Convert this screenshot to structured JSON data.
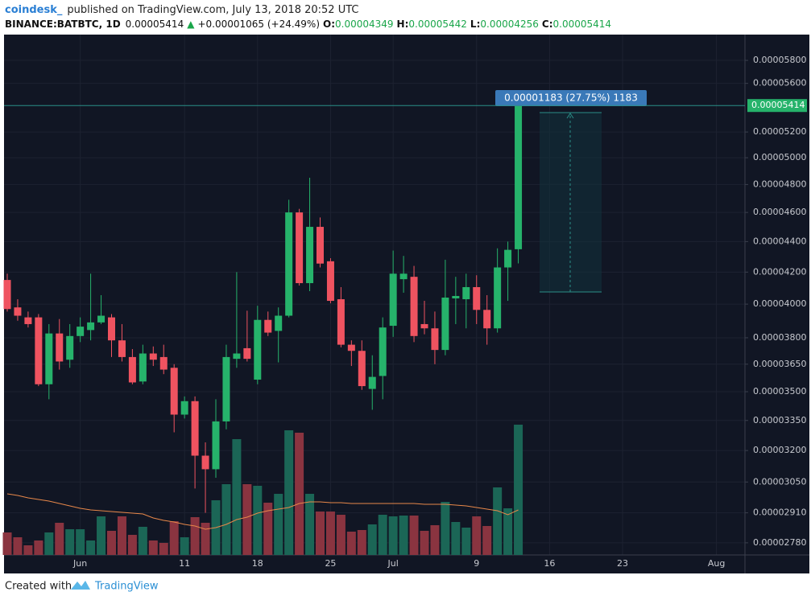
{
  "chart_data": {
    "type": "candlestick",
    "publisher": "coindesk_",
    "subtitle": "published on TradingView.com, July 13, 2018 20:52 UTC",
    "symbol": "BINANCE:BATBTC, 1D",
    "change_arrow": "▲",
    "change": "+0.00001065 (+24.49%)",
    "ohlc_labels": [
      "O:",
      "H:",
      "L:",
      "C:"
    ],
    "measure_label": "0.00001183 (27.75%) 1183",
    "footer": "Created with",
    "footer_brand": "TradingView",
    "log_scale": true,
    "grid": true,
    "up_color": "#26b36b",
    "down_color": "#ef5360",
    "volume_up_color": "#1b6656",
    "volume_down_color": "#8a3440",
    "ma_color": "#e8884a",
    "ylim": [
      2.729e-05,
      6.025e-05
    ],
    "yticks": [
      {
        "value": 5.8e-05,
        "label": "0.00005800"
      },
      {
        "value": 5.6e-05,
        "label": "0.00005600"
      },
      {
        "value": 5.2e-05,
        "label": "0.00005200"
      },
      {
        "value": 5e-05,
        "label": "0.00005000"
      },
      {
        "value": 4.8e-05,
        "label": "0.00004800"
      },
      {
        "value": 4.6e-05,
        "label": "0.00004600"
      },
      {
        "value": 4.4e-05,
        "label": "0.00004400"
      },
      {
        "value": 4.2e-05,
        "label": "0.00004200"
      },
      {
        "value": 4e-05,
        "label": "0.00004000"
      },
      {
        "value": 3.8e-05,
        "label": "0.00003800"
      },
      {
        "value": 3.65e-05,
        "label": "0.00003650"
      },
      {
        "value": 3.5e-05,
        "label": "0.00003500"
      },
      {
        "value": 3.35e-05,
        "label": "0.00003350"
      },
      {
        "value": 3.2e-05,
        "label": "0.00003200"
      },
      {
        "value": 3.05e-05,
        "label": "0.00003050"
      },
      {
        "value": 2.91e-05,
        "label": "0.00002910"
      },
      {
        "value": 2.78e-05,
        "label": "0.00002780"
      }
    ],
    "categories": [
      null,
      null,
      null,
      null,
      null,
      null,
      null,
      "Jun",
      null,
      null,
      null,
      null,
      null,
      null,
      null,
      null,
      null,
      "11",
      null,
      null,
      null,
      null,
      null,
      null,
      "18",
      null,
      null,
      null,
      null,
      null,
      null,
      "25",
      null,
      null,
      null,
      null,
      null,
      "Jul",
      null,
      null,
      null,
      null,
      null,
      null,
      null,
      "9",
      null,
      null,
      null,
      null,
      null,
      null,
      "16",
      null,
      null,
      null,
      null,
      null,
      null,
      "23",
      null,
      null,
      null,
      null,
      null,
      null,
      null,
      null,
      "Aug",
      null,
      null
    ],
    "open": [
      4.15e-05,
      3.98e-05,
      3.92e-05,
      3.92e-05,
      3.54e-05,
      3.825e-05,
      3.675e-05,
      3.81e-05,
      3.845e-05,
      3.89e-05,
      3.92e-05,
      3.785e-05,
      3.69e-05,
      3.555e-05,
      3.71e-05,
      3.69e-05,
      3.63e-05,
      3.38e-05,
      3.45e-05,
      3.175e-05,
      3.11e-05,
      3.345e-05,
      3.68e-05,
      3.74e-05,
      3.565e-05,
      3.905e-05,
      3.84e-05,
      3.93e-05,
      4.6e-05,
      4.13e-05,
      4.5e-05,
      4.27e-05,
      4.03e-05,
      3.76e-05,
      3.725e-05,
      3.515e-05,
      3.585e-05,
      3.87e-05,
      4.155e-05,
      4.17e-05,
      3.88e-05,
      3.855e-05,
      3.73e-05,
      4.035e-05,
      4.03e-05,
      4.105e-05,
      3.965e-05,
      3.855e-05,
      4.23e-05,
      4.349e-05,
      null,
      null,
      null,
      null,
      null,
      null,
      null,
      null,
      null,
      null,
      null,
      null,
      null,
      null,
      null,
      null,
      null,
      null,
      null,
      null,
      null
    ],
    "high": [
      4.19e-05,
      4.03e-05,
      3.955e-05,
      3.94e-05,
      3.88e-05,
      3.91e-05,
      3.88e-05,
      3.92e-05,
      4.19e-05,
      4.055e-05,
      3.94e-05,
      3.88e-05,
      3.735e-05,
      3.76e-05,
      3.75e-05,
      3.76e-05,
      3.65e-05,
      3.475e-05,
      3.475e-05,
      3.24e-05,
      3.46e-05,
      3.76e-05,
      4.2e-05,
      3.96e-05,
      3.99e-05,
      3.955e-05,
      3.98e-05,
      4.69e-05,
      4.625e-05,
      4.85e-05,
      4.565e-05,
      4.29e-05,
      4.105e-05,
      3.785e-05,
      3.785e-05,
      3.7e-05,
      3.92e-05,
      4.34e-05,
      4.305e-05,
      4.24e-05,
      4.02e-05,
      3.955e-05,
      4.28e-05,
      4.17e-05,
      4.19e-05,
      4.18e-05,
      4.055e-05,
      4.355e-05,
      4.4e-05,
      5.442e-05,
      null,
      null,
      null,
      null,
      null,
      null,
      null,
      null,
      null,
      null,
      null,
      null,
      null,
      null,
      null,
      null,
      null,
      null,
      null,
      null,
      null
    ],
    "low": [
      3.955e-05,
      3.9e-05,
      3.86e-05,
      3.53e-05,
      3.46e-05,
      3.62e-05,
      3.63e-05,
      3.775e-05,
      3.785e-05,
      3.88e-05,
      3.69e-05,
      3.665e-05,
      3.54e-05,
      3.54e-05,
      3.64e-05,
      3.595e-05,
      3.29e-05,
      3.36e-05,
      3.02e-05,
      2.91e-05,
      3.07e-05,
      3.305e-05,
      3.63e-05,
      3.665e-05,
      3.54e-05,
      3.81e-05,
      3.66e-05,
      3.92e-05,
      4.115e-05,
      4.08e-05,
      4.23e-05,
      4.005e-05,
      3.745e-05,
      3.64e-05,
      3.51e-05,
      3.405e-05,
      3.46e-05,
      3.805e-05,
      4.07e-05,
      3.775e-05,
      3.82e-05,
      3.65e-05,
      3.7e-05,
      3.88e-05,
      3.855e-05,
      3.88e-05,
      3.76e-05,
      3.83e-05,
      4.02e-05,
      4.256e-05,
      null,
      null,
      null,
      null,
      null,
      null,
      null,
      null,
      null,
      null,
      null,
      null,
      null,
      null,
      null,
      null,
      null,
      null,
      null,
      null,
      null
    ],
    "close": [
      3.97e-05,
      3.93e-05,
      3.88e-05,
      3.54e-05,
      3.825e-05,
      3.665e-05,
      3.81e-05,
      3.865e-05,
      3.89e-05,
      3.93e-05,
      3.785e-05,
      3.69e-05,
      3.55e-05,
      3.71e-05,
      3.675e-05,
      3.62e-05,
      3.38e-05,
      3.45e-05,
      3.175e-05,
      3.11e-05,
      3.345e-05,
      3.69e-05,
      3.71e-05,
      3.68e-05,
      3.905e-05,
      3.83e-05,
      3.93e-05,
      4.6e-05,
      4.13e-05,
      4.5e-05,
      4.255e-05,
      4.02e-05,
      3.76e-05,
      3.725e-05,
      3.53e-05,
      3.58e-05,
      3.86e-05,
      4.19e-05,
      4.19e-05,
      3.81e-05,
      3.855e-05,
      3.73e-05,
      4.04e-05,
      4.05e-05,
      4.105e-05,
      3.965e-05,
      3.855e-05,
      4.23e-05,
      4.345e-05,
      5.414e-05,
      null,
      null,
      null,
      null,
      null,
      null,
      null,
      null,
      null,
      null,
      null,
      null,
      null,
      null,
      null,
      null,
      null,
      null,
      null,
      null,
      null
    ],
    "volume": [
      28,
      22,
      12,
      18,
      28,
      40,
      32,
      32,
      18,
      48,
      30,
      48,
      25,
      35,
      18,
      15,
      42,
      22,
      47,
      40,
      68,
      88,
      144,
      88,
      86,
      65,
      76,
      155,
      152,
      76,
      54,
      54,
      50,
      29,
      31,
      38,
      50,
      48,
      49,
      49,
      30,
      37,
      66,
      41,
      34,
      48,
      36,
      84,
      58,
      162,
      null,
      null,
      null,
      null,
      null,
      null,
      null,
      null,
      null,
      null,
      null,
      null,
      null,
      null,
      null,
      null,
      null,
      null,
      null,
      null,
      null
    ],
    "volume_ma": [
      76,
      74,
      71,
      69,
      67,
      64,
      61,
      58,
      56,
      55,
      54,
      53,
      52,
      51,
      46,
      43,
      41,
      38,
      36,
      32,
      34,
      38,
      44,
      47,
      52,
      55,
      57,
      59,
      64,
      66,
      66,
      65,
      65,
      64,
      64,
      64,
      64,
      64,
      64,
      64,
      63,
      63,
      63,
      62,
      61,
      59,
      57,
      55,
      50,
      56,
      null,
      null,
      null,
      null,
      null,
      null,
      null,
      null,
      null,
      null,
      null,
      null,
      null,
      null,
      null,
      null,
      null,
      null,
      null,
      null,
      null
    ]
  }
}
